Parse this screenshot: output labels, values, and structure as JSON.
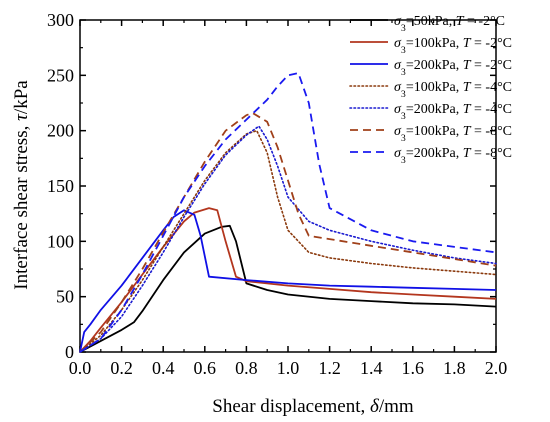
{
  "chart_data": {
    "type": "line",
    "xlabel": "Shear displacement, δ/mm",
    "ylabel": "Interface shear stress, τ/kPa",
    "xlim": [
      0,
      2.0
    ],
    "ylim": [
      0,
      300
    ],
    "x_ticks": [
      "0.0",
      "0.2",
      "0.4",
      "0.6",
      "0.8",
      "1.0",
      "1.2",
      "1.4",
      "1.6",
      "1.8",
      "2.0"
    ],
    "y_ticks": [
      "0",
      "50",
      "100",
      "150",
      "200",
      "250",
      "300"
    ],
    "legend_position": "top-right",
    "grid": false,
    "series": [
      {
        "name": "σ3=50kPa, T = -2°C",
        "color": "#000000",
        "dash": "solid",
        "x": [
          0.0,
          0.05,
          0.1,
          0.2,
          0.26,
          0.3,
          0.4,
          0.5,
          0.6,
          0.68,
          0.72,
          0.75,
          0.8,
          0.9,
          1.0,
          1.2,
          1.4,
          1.6,
          1.8,
          2.0
        ],
        "y": [
          0,
          5,
          10,
          20,
          27,
          37,
          65,
          90,
          107,
          113,
          114,
          100,
          62,
          56,
          52,
          48,
          46,
          44,
          43,
          41
        ]
      },
      {
        "name": "σ3=100kPa, T = -2°C",
        "color": "#b3361e",
        "dash": "solid",
        "x": [
          0.0,
          0.05,
          0.1,
          0.2,
          0.3,
          0.4,
          0.5,
          0.55,
          0.62,
          0.66,
          0.7,
          0.75,
          0.8,
          1.0,
          1.2,
          1.4,
          1.6,
          1.8,
          2.0
        ],
        "y": [
          0,
          10,
          22,
          45,
          70,
          95,
          118,
          126,
          130,
          128,
          100,
          68,
          64,
          60,
          57,
          54,
          52,
          50,
          48
        ]
      },
      {
        "name": "σ3=200kPa, T = -2°C",
        "color": "#1010e6",
        "dash": "solid",
        "x": [
          0.0,
          0.02,
          0.05,
          0.1,
          0.2,
          0.3,
          0.4,
          0.45,
          0.5,
          0.55,
          0.58,
          0.62,
          0.8,
          1.0,
          1.2,
          1.4,
          1.6,
          1.8,
          2.0
        ],
        "y": [
          0,
          18,
          25,
          38,
          60,
          85,
          110,
          122,
          128,
          124,
          105,
          68,
          65,
          62,
          60,
          59,
          58,
          57,
          56
        ]
      },
      {
        "name": "σ3=100kPa, T = -4°C",
        "color": "#8b3a0e",
        "dash": "dot",
        "x": [
          0.0,
          0.1,
          0.2,
          0.3,
          0.4,
          0.5,
          0.6,
          0.7,
          0.8,
          0.85,
          0.9,
          0.95,
          1.0,
          1.1,
          1.2,
          1.4,
          1.6,
          1.8,
          2.0
        ],
        "y": [
          0,
          15,
          38,
          65,
          95,
          125,
          155,
          180,
          197,
          200,
          180,
          140,
          110,
          90,
          85,
          80,
          76,
          73,
          70
        ]
      },
      {
        "name": "σ3=200kPa, T = -4°C",
        "color": "#1a1ad0",
        "dash": "dot",
        "x": [
          0.0,
          0.1,
          0.2,
          0.3,
          0.4,
          0.5,
          0.6,
          0.7,
          0.8,
          0.86,
          0.9,
          0.95,
          1.0,
          1.1,
          1.2,
          1.4,
          1.6,
          1.8,
          2.0
        ],
        "y": [
          0,
          12,
          32,
          60,
          90,
          122,
          152,
          178,
          196,
          204,
          192,
          168,
          140,
          118,
          110,
          100,
          92,
          85,
          80
        ]
      },
      {
        "name": "σ3=100kPa, T = -8°C",
        "color": "#a0401a",
        "dash": "dash",
        "x": [
          0.0,
          0.1,
          0.2,
          0.3,
          0.4,
          0.5,
          0.6,
          0.7,
          0.8,
          0.83,
          0.9,
          0.95,
          1.0,
          1.05,
          1.1,
          1.2,
          1.4,
          1.6,
          1.8,
          2.0
        ],
        "y": [
          0,
          18,
          45,
          75,
          108,
          140,
          172,
          200,
          214,
          216,
          208,
          185,
          155,
          125,
          105,
          102,
          96,
          90,
          84,
          78
        ]
      },
      {
        "name": "σ3=200kPa, T = -8°C",
        "color": "#1a1af0",
        "dash": "dash",
        "x": [
          0.0,
          0.1,
          0.2,
          0.3,
          0.4,
          0.5,
          0.6,
          0.7,
          0.8,
          0.9,
          0.95,
          1.0,
          1.05,
          1.1,
          1.15,
          1.2,
          1.3,
          1.4,
          1.6,
          1.8,
          2.0
        ],
        "y": [
          0,
          12,
          38,
          70,
          105,
          140,
          168,
          192,
          210,
          228,
          240,
          250,
          252,
          225,
          170,
          130,
          120,
          110,
          100,
          95,
          90
        ]
      }
    ]
  }
}
